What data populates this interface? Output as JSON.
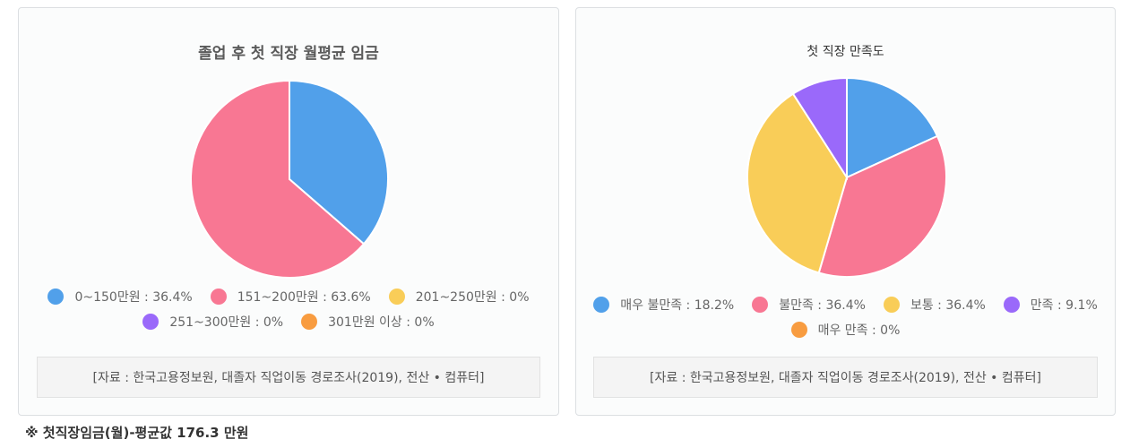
{
  "chart_data": [
    {
      "type": "pie",
      "title": "졸업 후 첫 직장 월평균 임금",
      "categories": [
        "0~150만원",
        "151~200만원",
        "201~250만원",
        "251~300만원",
        "301만원 이상"
      ],
      "values": [
        36.4,
        63.6,
        0,
        0,
        0
      ],
      "value_labels": [
        "36.4%",
        "63.6%",
        "0%",
        "0%",
        "0%"
      ],
      "colors": [
        "#51a0ea",
        "#f87793",
        "#f9cd58",
        "#9a69fa",
        "#f89c40"
      ],
      "legend_rows": [
        [
          0,
          1,
          2
        ],
        [
          3,
          4
        ]
      ],
      "legend_position": "bottom",
      "source": "[자료 : 한국고용정보원, 대졸자 직업이동 경로조사(2019), 전산 • 컴퓨터]"
    },
    {
      "type": "pie",
      "title": "첫 직장 만족도",
      "categories": [
        "매우 불만족",
        "불만족",
        "보통",
        "만족",
        "매우 만족"
      ],
      "values": [
        18.2,
        36.4,
        36.4,
        9.1,
        0
      ],
      "value_labels": [
        "18.2%",
        "36.4%",
        "36.4%",
        "9.1%",
        "0%"
      ],
      "colors": [
        "#51a0ea",
        "#f87793",
        "#f9cd58",
        "#9a69fa",
        "#f89c40"
      ],
      "legend_rows": [
        [
          0,
          1,
          2,
          3
        ],
        [
          4
        ]
      ],
      "legend_position": "bottom",
      "source": "[자료 : 한국고용정보원, 대졸자 직업이동 경로조사(2019), 전산 • 컴퓨터]"
    }
  ],
  "footnote": "※ 첫직장임금(월)-평균값 176.3 만원"
}
